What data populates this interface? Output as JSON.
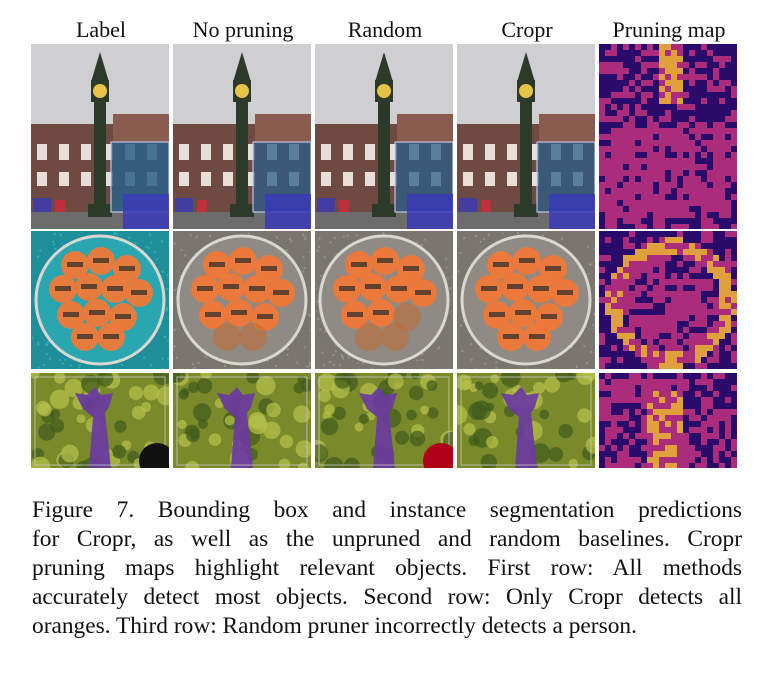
{
  "figure": {
    "column_headers": [
      "Label",
      "No pruning",
      "Random",
      "Cropr",
      "Pruning map"
    ],
    "rows": [
      {
        "name": "clock-tower",
        "tiles": [
          {
            "kind": "segmentation",
            "method": "Label"
          },
          {
            "kind": "segmentation",
            "method": "No pruning"
          },
          {
            "kind": "segmentation",
            "method": "Random"
          },
          {
            "kind": "segmentation",
            "method": "Cropr"
          },
          {
            "kind": "heatmap",
            "method": "Pruning map"
          }
        ]
      },
      {
        "name": "oranges",
        "tiles": [
          {
            "kind": "segmentation",
            "method": "Label"
          },
          {
            "kind": "segmentation",
            "method": "No pruning"
          },
          {
            "kind": "segmentation",
            "method": "Random"
          },
          {
            "kind": "segmentation",
            "method": "Cropr"
          },
          {
            "kind": "heatmap",
            "method": "Pruning map"
          }
        ]
      },
      {
        "name": "giraffe",
        "tiles": [
          {
            "kind": "segmentation",
            "method": "Label"
          },
          {
            "kind": "segmentation",
            "method": "No pruning"
          },
          {
            "kind": "segmentation",
            "method": "Random"
          },
          {
            "kind": "segmentation",
            "method": "Cropr"
          },
          {
            "kind": "heatmap",
            "method": "Pruning map"
          }
        ]
      }
    ],
    "colors": {
      "sky": "#cfcfd1",
      "building": "#6e4a43",
      "tower": "#2c3a2a",
      "bus_mask": "#2b5f86",
      "car_mask": "#3a3ab8",
      "orange_mask": "#f07838",
      "plate_label": "#2aa6b0",
      "plate_pred": "#8f8a83",
      "giraffe_mask": "#6a3aa0",
      "foliage": "#7a8a2a",
      "person_mask": "#b0001a",
      "heat_dark": "#2a0b6b",
      "heat_mid": "#b8307c",
      "heat_bright": "#f4b03a"
    }
  },
  "caption": {
    "lines": [
      "Figure 7.  Bounding box and instance segmentation predictions",
      "for Cropr, as well as the unpruned and random baselines.  Cropr",
      "pruning maps highlight relevant objects.  First row:  All methods",
      "accurately detect most objects. Second row: Only Cropr detects all",
      "oranges. Third row: Random pruner incorrectly detects a person."
    ]
  }
}
